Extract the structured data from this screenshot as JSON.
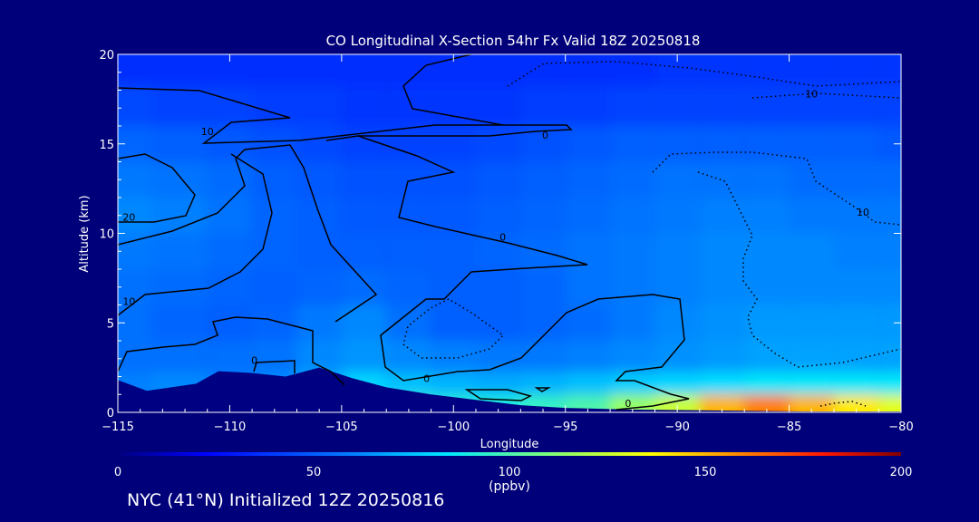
{
  "chart_data": {
    "type": "heatmap",
    "title": "CO Longitudinal X-Section 54hr  Fx Valid 18Z 20250818",
    "xlabel": "Longitude",
    "ylabel": "Altitude (km)",
    "xlim": [
      -115,
      -80
    ],
    "ylim": [
      0,
      20
    ],
    "x_ticks": [
      -115,
      -110,
      -105,
      -100,
      -95,
      -90,
      -85,
      -80
    ],
    "x_tick_labels": [
      "−115",
      "−110",
      "−105",
      "−100",
      "−95",
      "−90",
      "−85",
      "−80"
    ],
    "y_ticks": [
      0,
      5,
      10,
      15,
      20
    ],
    "y_tick_labels": [
      "0",
      "5",
      "10",
      "15",
      "20"
    ],
    "colorbar": {
      "ticks": [
        0,
        50,
        100,
        150,
        200
      ],
      "tick_labels": [
        "0",
        "50",
        "100",
        "150",
        "200"
      ],
      "units": "(ppbv)",
      "range": [
        0,
        200
      ]
    },
    "field_samples": {
      "x": [
        -115,
        -112,
        -110,
        -108,
        -106,
        -104,
        -102,
        -100,
        -98,
        -96,
        -94,
        -92,
        -90,
        -88,
        -86,
        -84,
        -82,
        -80
      ],
      "y": [
        0.5,
        1.5,
        3,
        5,
        7,
        9,
        11,
        13,
        15,
        17,
        19.5
      ],
      "co_ppbv": [
        [
          null,
          null,
          null,
          null,
          null,
          null,
          95,
          92,
          90,
          95,
          100,
          115,
          125,
          150,
          160,
          150,
          140,
          130
        ],
        [
          60,
          62,
          60,
          62,
          70,
          80,
          75,
          72,
          70,
          72,
          75,
          78,
          80,
          82,
          85,
          85,
          85,
          85
        ],
        [
          55,
          55,
          55,
          56,
          62,
          65,
          62,
          60,
          58,
          58,
          60,
          62,
          64,
          66,
          68,
          68,
          68,
          68
        ],
        [
          55,
          52,
          50,
          52,
          58,
          62,
          55,
          50,
          50,
          52,
          54,
          58,
          62,
          64,
          66,
          66,
          66,
          66
        ],
        [
          55,
          54,
          52,
          50,
          52,
          54,
          52,
          50,
          50,
          52,
          56,
          58,
          60,
          62,
          62,
          62,
          62,
          62
        ],
        [
          58,
          56,
          54,
          52,
          50,
          50,
          50,
          50,
          52,
          54,
          56,
          58,
          60,
          62,
          62,
          62,
          60,
          60
        ],
        [
          62,
          60,
          56,
          52,
          50,
          48,
          48,
          48,
          50,
          52,
          54,
          56,
          58,
          60,
          60,
          58,
          58,
          58
        ],
        [
          58,
          56,
          54,
          50,
          48,
          46,
          46,
          46,
          48,
          50,
          52,
          54,
          56,
          56,
          56,
          54,
          54,
          54
        ],
        [
          52,
          50,
          48,
          46,
          44,
          42,
          42,
          42,
          44,
          46,
          48,
          50,
          50,
          50,
          50,
          50,
          50,
          48
        ],
        [
          44,
          42,
          42,
          40,
          40,
          38,
          38,
          38,
          38,
          40,
          40,
          42,
          42,
          42,
          42,
          42,
          42,
          42
        ],
        [
          36,
          36,
          36,
          36,
          36,
          36,
          36,
          36,
          36,
          36,
          36,
          36,
          38,
          38,
          38,
          38,
          38,
          38
        ]
      ]
    },
    "terrain_km": [
      {
        "x": -115,
        "y": 1.8
      },
      {
        "x": -113.7,
        "y": 1.2
      },
      {
        "x": -111.5,
        "y": 1.6
      },
      {
        "x": -110.5,
        "y": 2.3
      },
      {
        "x": -109,
        "y": 2.2
      },
      {
        "x": -107.5,
        "y": 2.0
      },
      {
        "x": -106,
        "y": 2.5
      },
      {
        "x": -104.5,
        "y": 1.9
      },
      {
        "x": -103,
        "y": 1.4
      },
      {
        "x": -101,
        "y": 1.0
      },
      {
        "x": -99,
        "y": 0.7
      },
      {
        "x": -97,
        "y": 0.4
      },
      {
        "x": -95,
        "y": 0.25
      },
      {
        "x": -92,
        "y": 0.15
      },
      {
        "x": -88,
        "y": 0.1
      },
      {
        "x": -84,
        "y": 0.05
      },
      {
        "x": -80,
        "y": 0.05
      }
    ],
    "contour_labels": [
      {
        "text": "10",
        "x": -111.0,
        "y": 15.5
      },
      {
        "text": "20",
        "x": -114.5,
        "y": 10.7
      },
      {
        "text": "10",
        "x": -114.5,
        "y": 6.0
      },
      {
        "text": "0",
        "x": -108.9,
        "y": 2.7
      },
      {
        "text": "0",
        "x": -95.9,
        "y": 15.3
      },
      {
        "text": "0",
        "x": -97.8,
        "y": 9.6
      },
      {
        "text": "0",
        "x": -101.2,
        "y": 1.7
      },
      {
        "text": "0",
        "x": -92.2,
        "y": 0.3
      },
      {
        "text": "10",
        "x": -84.0,
        "y": 17.6
      },
      {
        "text": "10",
        "x": -81.7,
        "y": 11.0
      }
    ]
  },
  "footer": {
    "caption": "NYC (41°N) Initialized 12Z 20250816"
  },
  "colors": {
    "background": "#00007a",
    "terrain": "#000082",
    "contour": "#000000"
  }
}
